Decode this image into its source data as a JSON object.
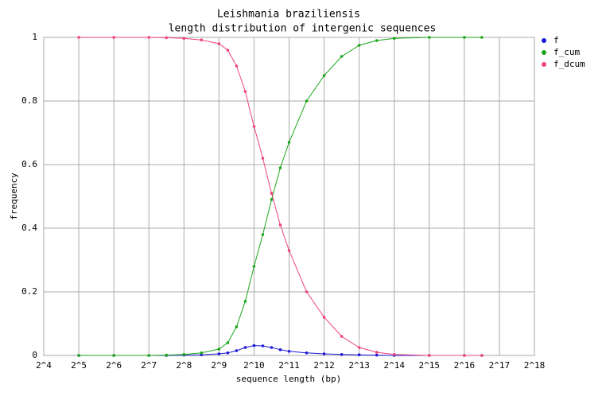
{
  "chart_data": {
    "type": "line",
    "title": "Leishmania braziliensis",
    "subtitle": "length distribution of intergenic sequences",
    "x_label": "sequence length (bp)",
    "y_label": "frequency",
    "x": [
      32,
      64,
      128,
      181,
      256,
      362,
      512,
      609,
      724,
      861,
      1024,
      1218,
      1448,
      1722,
      2048,
      2896,
      4096,
      5793,
      8192,
      11585,
      16384,
      32768,
      65536,
      92682
    ],
    "series": [
      {
        "name": "f",
        "color": "#1a1ad8",
        "values": [
          0,
          0,
          0,
          0,
          0.001,
          0.002,
          0.005,
          0.008,
          0.015,
          0.025,
          0.031,
          0.03,
          0.025,
          0.018,
          0.013,
          0.008,
          0.005,
          0.003,
          0.002,
          0.001,
          0,
          0,
          0,
          0
        ]
      },
      {
        "name": "f_cum",
        "color": "#1aa51a",
        "values": [
          0,
          0,
          0,
          0.001,
          0.003,
          0.008,
          0.02,
          0.04,
          0.09,
          0.17,
          0.28,
          0.38,
          0.49,
          0.59,
          0.67,
          0.8,
          0.88,
          0.94,
          0.975,
          0.99,
          0.997,
          1,
          1,
          1
        ]
      },
      {
        "name": "f_dcum",
        "color": "#ee4477",
        "values": [
          1,
          1,
          1,
          0.999,
          0.997,
          0.992,
          0.98,
          0.96,
          0.91,
          0.83,
          0.72,
          0.62,
          0.51,
          0.41,
          0.33,
          0.2,
          0.12,
          0.06,
          0.025,
          0.01,
          0.003,
          0,
          0,
          0
        ]
      }
    ],
    "log_x": true,
    "xlim": [
      16,
      262144
    ],
    "xticks": [
      {
        "value": 16,
        "label": "2^4"
      },
      {
        "value": 32,
        "label": "2^5"
      },
      {
        "value": 64,
        "label": "2^6"
      },
      {
        "value": 128,
        "label": "2^7"
      },
      {
        "value": 256,
        "label": "2^8"
      },
      {
        "value": 512,
        "label": "2^9"
      },
      {
        "value": 1024,
        "label": "2^10"
      },
      {
        "value": 2048,
        "label": "2^11"
      },
      {
        "value": 4096,
        "label": "2^12"
      },
      {
        "value": 8192,
        "label": "2^13"
      },
      {
        "value": 16384,
        "label": "2^14"
      },
      {
        "value": 32768,
        "label": "2^15"
      },
      {
        "value": 65536,
        "label": "2^16"
      },
      {
        "value": 131072,
        "label": "2^17"
      },
      {
        "value": 262144,
        "label": "2^18"
      }
    ],
    "ylim": [
      0,
      1
    ],
    "yticks": [
      0,
      0.2,
      0.4,
      0.6,
      0.8,
      1
    ],
    "grid": true,
    "legend": "right"
  }
}
